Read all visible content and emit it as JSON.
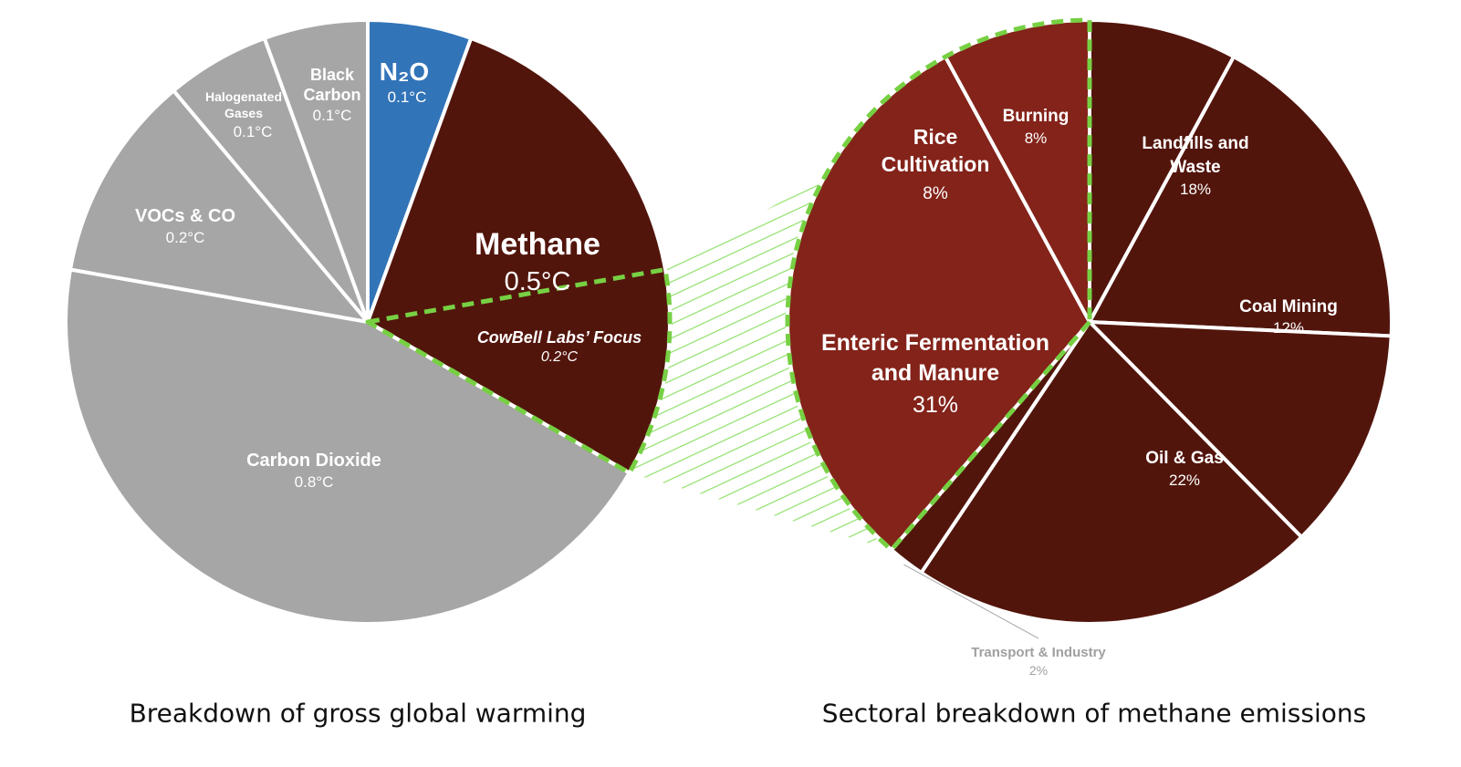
{
  "chart_data": [
    {
      "type": "pie",
      "title": "Breakdown of gross global warming",
      "unit": "°C",
      "slices": [
        {
          "name": "N2O",
          "label_text": "N₂O",
          "value": 0.1,
          "value_label": "0.1°C",
          "color": "#3274b8"
        },
        {
          "name": "Methane",
          "label_text": "Methane",
          "value": 0.5,
          "value_label": "0.5°C",
          "color": "#52150c"
        },
        {
          "name": "Carbon Dioxide",
          "label_text": "Carbon Dioxide",
          "value": 0.8,
          "value_label": "0.8°C",
          "color": "#a6a6a6"
        },
        {
          "name": "VOCs & CO",
          "label_text": "VOCs & CO",
          "value": 0.2,
          "value_label": "0.2°C",
          "color": "#a6a6a6"
        },
        {
          "name": "Halogenated Gases",
          "label_text": "Halogenated Gases",
          "value": 0.1,
          "value_label": "0.1°C",
          "color": "#a6a6a6"
        },
        {
          "name": "Black Carbon",
          "label_text": "Black Carbon",
          "value": 0.1,
          "value_label": "0.1°C",
          "color": "#a6a6a6"
        }
      ],
      "highlight": {
        "name": "CowBell Labs’ Focus",
        "value": 0.2,
        "value_label": "0.2°C",
        "color": "#77d043"
      }
    },
    {
      "type": "pie",
      "title": "Sectoral breakdown of methane emissions",
      "unit": "%",
      "slices": [
        {
          "name": "Burning",
          "value": 8,
          "value_label": "8%",
          "color": "#52150c"
        },
        {
          "name": "Landfills and Waste",
          "value": 18,
          "value_label": "18%",
          "color": "#52150c"
        },
        {
          "name": "Coal Mining",
          "value": 12,
          "value_label": "12%",
          "color": "#52150c"
        },
        {
          "name": "Oil & Gas",
          "value": 22,
          "value_label": "22%",
          "color": "#52150c"
        },
        {
          "name": "Transport & Industry",
          "value": 2,
          "value_label": "2%",
          "color": "#52150c"
        },
        {
          "name": "Enteric Fermentation and Manure",
          "value": 31,
          "value_label": "31%",
          "color": "#83231a"
        },
        {
          "name": "Rice Cultivation",
          "value": 8,
          "value_label": "8%",
          "color": "#83231a"
        }
      ],
      "highlight": {
        "slices": [
          "Enteric Fermentation and Manure",
          "Rice Cultivation"
        ],
        "color": "#77d043"
      }
    }
  ]
}
